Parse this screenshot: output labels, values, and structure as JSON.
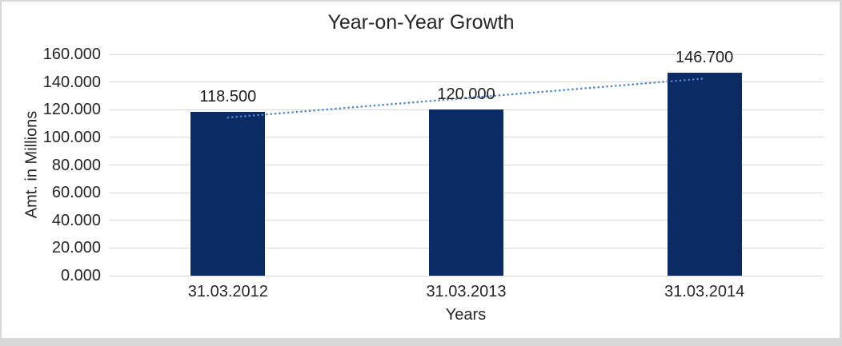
{
  "window": {
    "background_color": "#ffffff",
    "frame_color": "#d7d7d7"
  },
  "chart_data": {
    "type": "bar",
    "title": "Year-on-Year Growth",
    "xlabel": "Years",
    "ylabel": "Amt. in Millions",
    "categories": [
      "31.03.2012",
      "31.03.2013",
      "31.03.2014"
    ],
    "values": [
      118.5,
      120.0,
      146.7
    ],
    "data_labels": [
      "118.500",
      "120.000",
      "146.700"
    ],
    "ylim": [
      0,
      160
    ],
    "ytick_step": 20,
    "ytick_labels": [
      "0.000",
      "20.000",
      "40.000",
      "60.000",
      "80.000",
      "100.000",
      "120.000",
      "140.000",
      "160.000"
    ],
    "grid": true,
    "legend": "none",
    "bar_color": "#0c2a66",
    "gridline_color": "#d9d9d9",
    "text_color": "#262626",
    "trendline": {
      "type": "linear",
      "style": "dotted",
      "color": "#4e86c8",
      "start_value": 114.3,
      "end_value": 142.5
    }
  }
}
